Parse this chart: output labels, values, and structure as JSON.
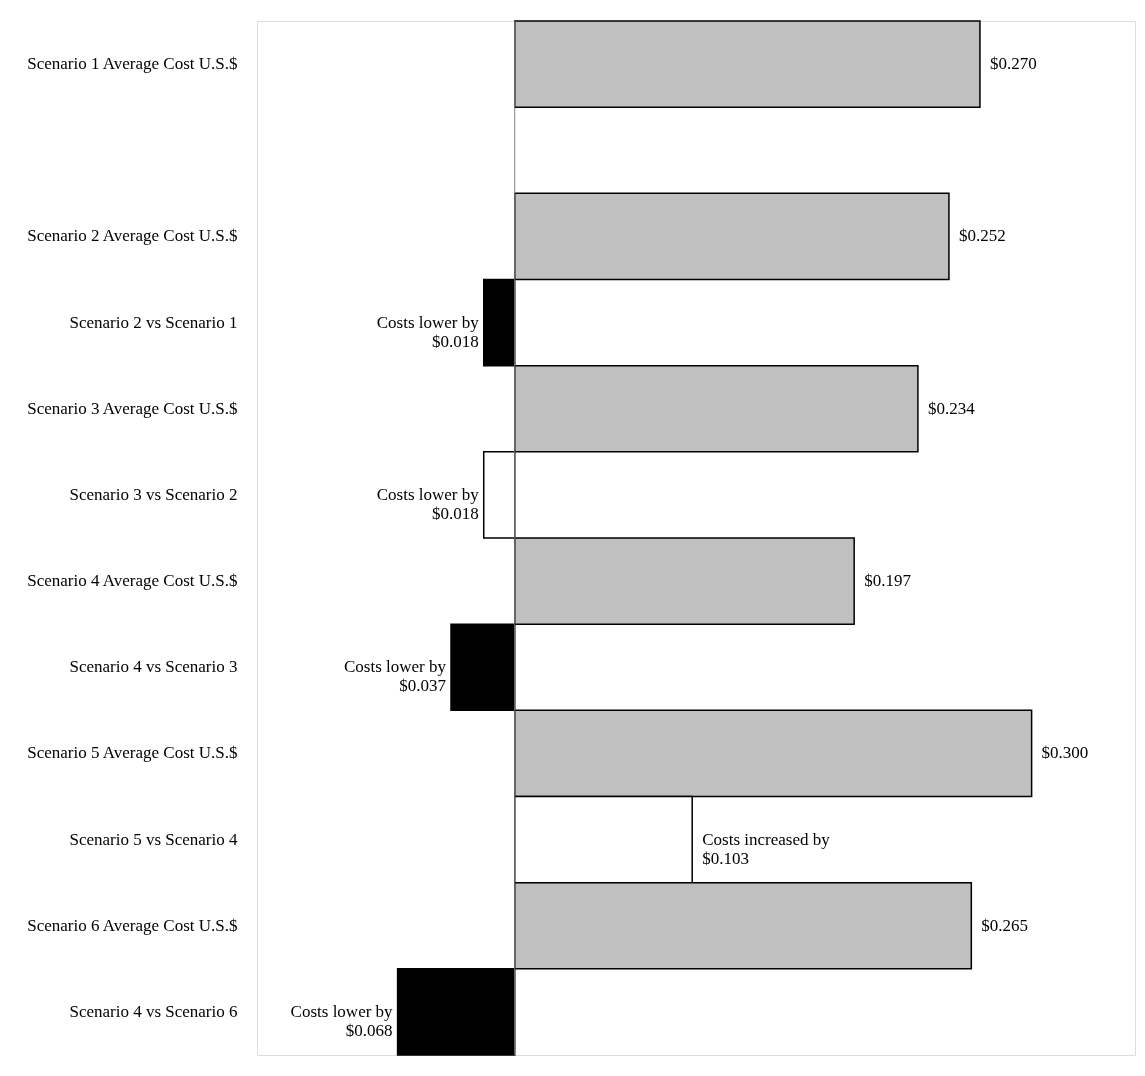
{
  "chart_data": {
    "type": "bar",
    "orientation": "horizontal",
    "categories": [
      "Scenario 1 Average Cost U.S.$",
      null,
      "Scenario 2 Average Cost U.S.$",
      "Scenario 2 vs Scenario 1",
      "Scenario 3 Average Cost U.S.$",
      "Scenario 3 vs Scenario 2",
      "Scenario 4 Average Cost U.S.$",
      "Scenario 4 vs Scenario 3",
      "Scenario 5 Average Cost U.S.$",
      "Scenario 5 vs Scenario 4",
      "Scenario 6 Average Cost U.S.$",
      "Scenario 4 vs Scenario 6"
    ],
    "values": [
      0.27,
      null,
      0.252,
      -0.018,
      0.234,
      -0.018,
      0.197,
      -0.037,
      0.3,
      0.103,
      0.265,
      -0.068
    ],
    "colors": [
      "#c0c0c0",
      null,
      "#c0c0c0",
      "#000000",
      "#c0c0c0",
      "#ffffff",
      "#c0c0c0",
      "#000000",
      "#c0c0c0",
      "#ffffff",
      "#c0c0c0",
      "#000000"
    ],
    "value_labels": [
      "$0.270",
      null,
      "$0.252",
      "Costs lower by\n$0.018",
      "$0.234",
      "Costs lower by\n$0.018",
      "$0.197",
      "Costs lower by\n$0.037",
      "$0.300",
      "Costs increased by\n$0.103",
      "$0.265",
      "Costs lower by\n$0.068"
    ],
    "ref_lines": [
      {
        "axis": "x",
        "value": 0,
        "color": "#808080"
      }
    ]
  }
}
